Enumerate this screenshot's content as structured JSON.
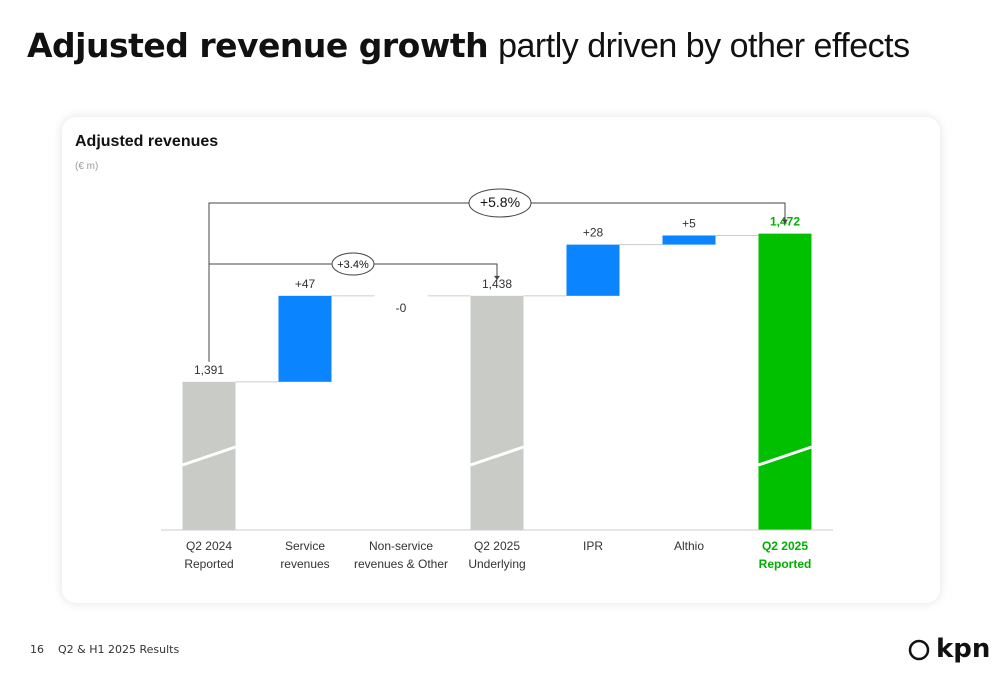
{
  "header": {
    "title_bold": "Adjusted revenue growth",
    "title_rest": "partly driven by other effects"
  },
  "chart_data": {
    "type": "waterfall",
    "title": "Adjusted revenues",
    "subtitle": "(€ m)",
    "categories": [
      [
        "Q2 2024",
        "Reported"
      ],
      [
        "Service",
        "revenues"
      ],
      [
        "Non-service",
        "revenues & Other"
      ],
      [
        "Q2 2025",
        "Underlying"
      ],
      [
        "IPR"
      ],
      [
        "Althio"
      ],
      [
        "Q2 2025",
        "Reported"
      ]
    ],
    "measures": [
      "total",
      "relative",
      "relative",
      "total",
      "relative",
      "relative",
      "total"
    ],
    "values": [
      1391,
      47,
      0,
      1438,
      28,
      5,
      1472
    ],
    "value_labels": [
      "1,391",
      "+47",
      "-0",
      "1,438",
      "+28",
      "+5",
      "1,472"
    ],
    "colors": [
      "#c8cbc6",
      "#0a84ff",
      "#0a84ff",
      "#c8cbc6",
      "#0a84ff",
      "#0a84ff",
      "#00c000"
    ],
    "ylim": [
      1310,
      1480
    ],
    "annotations": [
      {
        "text": "+5.8%"
      },
      {
        "text": "+3.4%"
      }
    ]
  },
  "footer": {
    "page": "16",
    "text": "Q2 & H1 2025 Results",
    "logo": "kpn"
  }
}
